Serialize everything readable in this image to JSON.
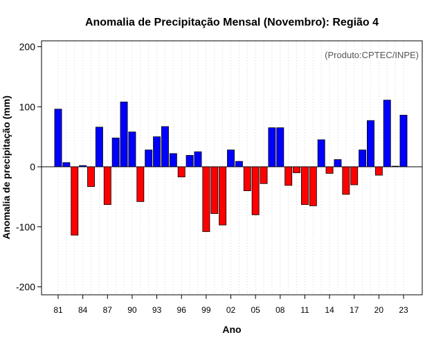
{
  "chart_data": {
    "type": "bar",
    "title": "Anomalia de Precipitação Mensal (Novembro): Região 4",
    "xlabel": "Ano",
    "ylabel": "Anomalia de precipitação (mm)",
    "source_note": "(Produto:CPTEC/INPE)",
    "ylim": [
      -200,
      200
    ],
    "yticks": [
      "-200",
      "-100",
      "0",
      "100",
      "200"
    ],
    "ytick_values": [
      -200,
      -100,
      0,
      100,
      200
    ],
    "x": [
      1981,
      1982,
      1983,
      1984,
      1985,
      1986,
      1987,
      1988,
      1989,
      1990,
      1991,
      1992,
      1993,
      1994,
      1995,
      1996,
      1997,
      1998,
      1999,
      2000,
      2001,
      2002,
      2003,
      2004,
      2005,
      2006,
      2007,
      2008,
      2009,
      2010,
      2011,
      2012,
      2013,
      2014,
      2015,
      2016,
      2017,
      2018,
      2019,
      2020,
      2021,
      2022,
      2023
    ],
    "values": [
      96,
      7,
      -114,
      2,
      -33,
      66,
      -63,
      48,
      108,
      58,
      -58,
      28,
      50,
      67,
      22,
      -17,
      19,
      25,
      -108,
      -78,
      -97,
      28,
      9,
      -40,
      -80,
      -28,
      65,
      65,
      -31,
      -10,
      -63,
      -65,
      45,
      -11,
      12,
      -46,
      -30,
      28,
      77,
      -14,
      111,
      1,
      86
    ],
    "xtick_labels": [
      "81",
      "84",
      "87",
      "90",
      "93",
      "96",
      "99",
      "02",
      "05",
      "08",
      "11",
      "14",
      "17",
      "20",
      "23"
    ],
    "xtick_years": [
      1981,
      1984,
      1987,
      1990,
      1993,
      1996,
      1999,
      2002,
      2005,
      2008,
      2011,
      2014,
      2017,
      2020,
      2023
    ],
    "grid": true,
    "colors": {
      "positive": "#0000ff",
      "negative": "#ff0000",
      "zero_line": "#000000",
      "grid": "#d3d3d3",
      "frame": "#000000"
    }
  }
}
